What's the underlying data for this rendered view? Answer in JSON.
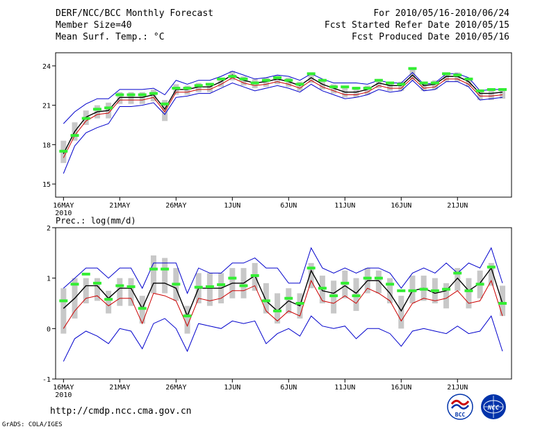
{
  "header": {
    "title": "DERF/NCC/BCC Monthly Forecast",
    "member_size": "Member Size=40",
    "variable": "Mean Surf. Temp.: °C",
    "forecast_period": "For 2010/05/16-2010/06/24",
    "started_refer": "Fcst Started Refer Date 2010/05/15",
    "produced": "Fcst Produced Date 2010/05/16"
  },
  "footer": {
    "url": "http://cmdp.ncc.cma.gov.cn",
    "credit": "GrADS: COLA/IGES",
    "logo_bcc": "BCC",
    "logo_ncc": "NCC"
  },
  "colors": {
    "spread": "#0000cc",
    "mean": "#000000",
    "median": "#cc0000",
    "box": "#c8c8c8",
    "obs": "#33ee33"
  },
  "chart_data": [
    {
      "type": "line",
      "title": "Mean Surf. Temp.: °C",
      "x_tick_labels": [
        "16MAY",
        "21MAY",
        "26MAY",
        "1JUN",
        "6JUN",
        "11JUN",
        "16JUN",
        "21JUN"
      ],
      "x_tick_days": [
        1,
        6,
        11,
        16,
        21,
        26,
        31,
        36
      ],
      "x_year_label": "2010",
      "xlim": [
        0.3,
        40.8
      ],
      "ylim": [
        14,
        25
      ],
      "y_ticks": [
        15,
        18,
        21,
        24
      ],
      "days": [
        1,
        2,
        3,
        4,
        5,
        6,
        7,
        8,
        9,
        10,
        11,
        12,
        13,
        14,
        15,
        16,
        17,
        18,
        19,
        20,
        21,
        22,
        23,
        24,
        25,
        26,
        27,
        28,
        29,
        30,
        31,
        32,
        33,
        34,
        35,
        36,
        37,
        38,
        39,
        40
      ],
      "series": [
        {
          "name": "ensemble max",
          "values": [
            19.6,
            20.5,
            21.1,
            21.5,
            21.5,
            22.2,
            22.2,
            22.2,
            22.3,
            21.8,
            22.9,
            22.6,
            22.9,
            22.9,
            23.2,
            23.6,
            23.3,
            23.0,
            23.1,
            23.3,
            23.2,
            22.9,
            23.4,
            23.0,
            22.7,
            22.7,
            22.7,
            22.6,
            22.9,
            22.7,
            22.7,
            23.5,
            22.6,
            22.7,
            23.4,
            23.4,
            23.1,
            22.1,
            22.2,
            22.2
          ]
        },
        {
          "name": "ensemble mean",
          "values": [
            17.3,
            19.0,
            20.1,
            20.5,
            20.6,
            21.6,
            21.6,
            21.6,
            21.8,
            20.7,
            22.2,
            22.2,
            22.4,
            22.4,
            22.8,
            23.3,
            22.9,
            22.7,
            22.8,
            23.0,
            22.8,
            22.5,
            23.1,
            22.6,
            22.3,
            22.0,
            22.0,
            22.2,
            22.7,
            22.5,
            22.5,
            23.3,
            22.5,
            22.6,
            23.2,
            23.2,
            22.8,
            21.9,
            21.9,
            22.0
          ]
        },
        {
          "name": "ensemble median",
          "values": [
            17.0,
            18.7,
            19.8,
            20.3,
            20.4,
            21.4,
            21.4,
            21.4,
            21.6,
            20.5,
            22.0,
            22.0,
            22.2,
            22.2,
            22.6,
            23.1,
            22.7,
            22.5,
            22.6,
            22.8,
            22.6,
            22.3,
            22.9,
            22.4,
            22.1,
            21.8,
            21.8,
            22.0,
            22.5,
            22.3,
            22.3,
            23.1,
            22.3,
            22.4,
            23.0,
            23.0,
            22.6,
            21.7,
            21.7,
            21.8
          ]
        },
        {
          "name": "ensemble min",
          "values": [
            15.8,
            17.9,
            18.9,
            19.3,
            19.6,
            20.9,
            20.9,
            21.0,
            21.2,
            20.3,
            21.6,
            21.7,
            21.9,
            21.9,
            22.3,
            22.7,
            22.4,
            22.1,
            22.3,
            22.5,
            22.3,
            22.0,
            22.6,
            22.1,
            21.8,
            21.5,
            21.6,
            21.8,
            22.2,
            22.0,
            22.1,
            22.9,
            22.1,
            22.2,
            22.8,
            22.8,
            22.4,
            21.4,
            21.5,
            21.6
          ]
        },
        {
          "name": "observation",
          "values": [
            17.5,
            18.7,
            20.0,
            20.7,
            20.8,
            21.8,
            21.8,
            21.8,
            21.9,
            21.1,
            22.3,
            22.3,
            22.5,
            22.6,
            23.0,
            23.2,
            23.0,
            22.7,
            22.9,
            23.1,
            22.9,
            22.6,
            23.4,
            22.9,
            22.4,
            22.4,
            22.3,
            22.3,
            22.9,
            22.7,
            22.6,
            23.8,
            22.7,
            22.7,
            23.4,
            23.3,
            23.0,
            22.1,
            22.2,
            22.2
          ]
        }
      ],
      "boxes": [
        [
          16.6,
          18.3
        ],
        [
          18.3,
          19.7
        ],
        [
          19.5,
          20.6
        ],
        [
          20.0,
          21.0
        ],
        [
          20.0,
          21.2
        ],
        [
          21.1,
          22.0
        ],
        [
          21.1,
          22.0
        ],
        [
          21.1,
          22.0
        ],
        [
          21.3,
          22.2
        ],
        [
          19.8,
          21.4
        ],
        [
          21.8,
          22.6
        ],
        [
          21.8,
          22.5
        ],
        [
          22.0,
          22.7
        ],
        [
          22.0,
          22.7
        ],
        [
          22.4,
          23.1
        ],
        [
          22.9,
          23.6
        ],
        [
          22.5,
          23.2
        ],
        [
          22.3,
          23.0
        ],
        [
          22.4,
          23.1
        ],
        [
          22.6,
          23.3
        ],
        [
          22.4,
          23.1
        ],
        [
          22.1,
          22.8
        ],
        [
          22.7,
          23.5
        ],
        [
          22.2,
          22.9
        ],
        [
          21.9,
          22.6
        ],
        [
          21.6,
          22.4
        ],
        [
          21.6,
          22.3
        ],
        [
          21.8,
          22.5
        ],
        [
          22.3,
          23.0
        ],
        [
          22.1,
          22.8
        ],
        [
          22.1,
          22.8
        ],
        [
          22.9,
          23.8
        ],
        [
          22.1,
          22.8
        ],
        [
          22.2,
          22.9
        ],
        [
          22.8,
          23.5
        ],
        [
          22.8,
          23.5
        ],
        [
          22.4,
          23.1
        ],
        [
          21.4,
          22.2
        ],
        [
          21.4,
          22.2
        ],
        [
          21.5,
          22.3
        ]
      ]
    },
    {
      "type": "line",
      "title": "Prec.: log(mm/d)",
      "x_tick_labels": [
        "16MAY",
        "21MAY",
        "26MAY",
        "1JUN",
        "6JUN",
        "11JUN",
        "16JUN",
        "21JUN"
      ],
      "x_tick_days": [
        1,
        6,
        11,
        16,
        21,
        26,
        31,
        36
      ],
      "x_year_label": "2010",
      "xlim": [
        0.3,
        40.8
      ],
      "ylim": [
        -1,
        2
      ],
      "y_ticks": [
        -1,
        0,
        1,
        2
      ],
      "days": [
        1,
        2,
        3,
        4,
        5,
        6,
        7,
        8,
        9,
        10,
        11,
        12,
        13,
        14,
        15,
        16,
        17,
        18,
        19,
        20,
        21,
        22,
        23,
        24,
        25,
        26,
        27,
        28,
        29,
        30,
        31,
        32,
        33,
        34,
        35,
        36,
        37,
        38,
        39,
        40
      ],
      "series": [
        {
          "name": "ensemble max",
          "values": [
            0.8,
            1.0,
            1.2,
            1.2,
            1.0,
            1.2,
            1.2,
            0.8,
            1.3,
            1.3,
            1.3,
            0.7,
            1.2,
            1.1,
            1.1,
            1.3,
            1.3,
            1.4,
            1.2,
            1.2,
            0.9,
            0.9,
            1.6,
            1.2,
            1.1,
            1.2,
            1.1,
            1.2,
            1.2,
            1.1,
            0.8,
            1.1,
            1.2,
            1.1,
            1.3,
            1.1,
            1.3,
            1.2,
            1.6,
            0.9
          ]
        },
        {
          "name": "ensemble mean",
          "values": [
            0.4,
            0.6,
            0.85,
            0.85,
            0.6,
            0.8,
            0.8,
            0.4,
            0.9,
            0.9,
            0.8,
            0.25,
            0.8,
            0.8,
            0.8,
            0.9,
            0.9,
            1.05,
            0.55,
            0.35,
            0.55,
            0.45,
            1.15,
            0.75,
            0.7,
            0.85,
            0.7,
            0.95,
            0.95,
            0.7,
            0.35,
            0.75,
            0.8,
            0.7,
            0.75,
            1.0,
            0.75,
            0.9,
            1.2,
            0.5
          ]
        },
        {
          "name": "ensemble median",
          "values": [
            0.0,
            0.35,
            0.6,
            0.65,
            0.45,
            0.6,
            0.6,
            0.1,
            0.7,
            0.65,
            0.55,
            0.05,
            0.6,
            0.55,
            0.6,
            0.75,
            0.75,
            0.85,
            0.35,
            0.15,
            0.35,
            0.25,
            0.95,
            0.55,
            0.5,
            0.65,
            0.5,
            0.8,
            0.7,
            0.55,
            0.15,
            0.5,
            0.6,
            0.55,
            0.6,
            0.75,
            0.5,
            0.55,
            0.95,
            0.25
          ]
        },
        {
          "name": "ensemble min",
          "values": [
            -0.65,
            -0.2,
            -0.05,
            -0.15,
            -0.3,
            0.0,
            -0.05,
            -0.4,
            0.1,
            0.2,
            0.0,
            -0.45,
            0.1,
            0.05,
            0.0,
            0.15,
            0.1,
            0.15,
            -0.3,
            -0.1,
            0.0,
            -0.15,
            0.25,
            0.05,
            0.0,
            0.05,
            -0.2,
            0.0,
            0.0,
            -0.1,
            -0.35,
            -0.05,
            0.0,
            -0.05,
            -0.1,
            0.05,
            -0.1,
            -0.05,
            0.25,
            -0.45
          ]
        },
        {
          "name": "observation",
          "values": [
            0.55,
            0.88,
            1.08,
            0.9,
            0.58,
            0.85,
            0.83,
            0.4,
            1.18,
            1.18,
            0.88,
            0.25,
            0.82,
            0.83,
            0.87,
            1.0,
            0.85,
            1.05,
            0.55,
            0.35,
            0.6,
            0.5,
            1.2,
            0.8,
            0.65,
            0.9,
            0.65,
            1.0,
            1.0,
            0.88,
            0.75,
            0.75,
            0.78,
            0.75,
            0.78,
            1.1,
            0.75,
            0.88,
            1.22,
            0.5
          ]
        }
      ],
      "boxes": [
        [
          -0.1,
          0.8
        ],
        [
          0.2,
          1.0
        ],
        [
          0.5,
          1.0
        ],
        [
          0.55,
          1.0
        ],
        [
          0.3,
          0.75
        ],
        [
          0.45,
          1.0
        ],
        [
          0.45,
          1.0
        ],
        [
          0.1,
          0.65
        ],
        [
          0.7,
          1.45
        ],
        [
          0.7,
          1.4
        ],
        [
          0.55,
          1.2
        ],
        [
          -0.1,
          0.45
        ],
        [
          0.5,
          1.1
        ],
        [
          0.45,
          1.1
        ],
        [
          0.5,
          1.1
        ],
        [
          0.6,
          1.2
        ],
        [
          0.6,
          1.2
        ],
        [
          0.75,
          1.3
        ],
        [
          0.3,
          0.9
        ],
        [
          0.1,
          0.7
        ],
        [
          0.3,
          0.8
        ],
        [
          0.2,
          0.7
        ],
        [
          0.8,
          1.3
        ],
        [
          0.5,
          1.05
        ],
        [
          0.3,
          0.95
        ],
        [
          0.6,
          1.15
        ],
        [
          0.35,
          1.0
        ],
        [
          0.7,
          1.2
        ],
        [
          0.7,
          1.15
        ],
        [
          0.5,
          1.0
        ],
        [
          0.0,
          0.65
        ],
        [
          0.5,
          1.05
        ],
        [
          0.55,
          1.05
        ],
        [
          0.5,
          1.0
        ],
        [
          0.4,
          0.9
        ],
        [
          0.75,
          1.2
        ],
        [
          0.4,
          1.0
        ],
        [
          0.6,
          1.15
        ],
        [
          0.85,
          1.3
        ],
        [
          0.25,
          0.85
        ]
      ]
    }
  ]
}
